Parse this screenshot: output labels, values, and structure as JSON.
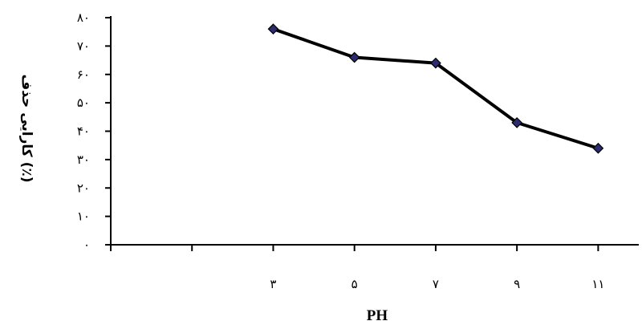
{
  "chart_data": {
    "type": "line",
    "title": "",
    "xlabel": "PH",
    "ylabel": "کارایی حذف (٪)",
    "x_tick_labels": [
      "۳",
      "۵",
      "۷",
      "۹",
      "۱۱"
    ],
    "y_tick_labels": [
      "۰",
      "۱۰",
      "۲۰",
      "۳۰",
      "۴۰",
      "۵۰",
      "۶۰",
      "۷۰",
      "۸۰"
    ],
    "x": [
      3,
      5,
      7,
      9,
      11
    ],
    "values": [
      76,
      66,
      64,
      43,
      34
    ],
    "xlim": [
      -1,
      12
    ],
    "ylim": [
      0,
      80
    ],
    "y_major_step": 10,
    "x_major_step": 2,
    "grid": false,
    "legend": "none",
    "line_color": "#000000",
    "marker_color": "#2b2b6e",
    "marker": "diamond"
  }
}
